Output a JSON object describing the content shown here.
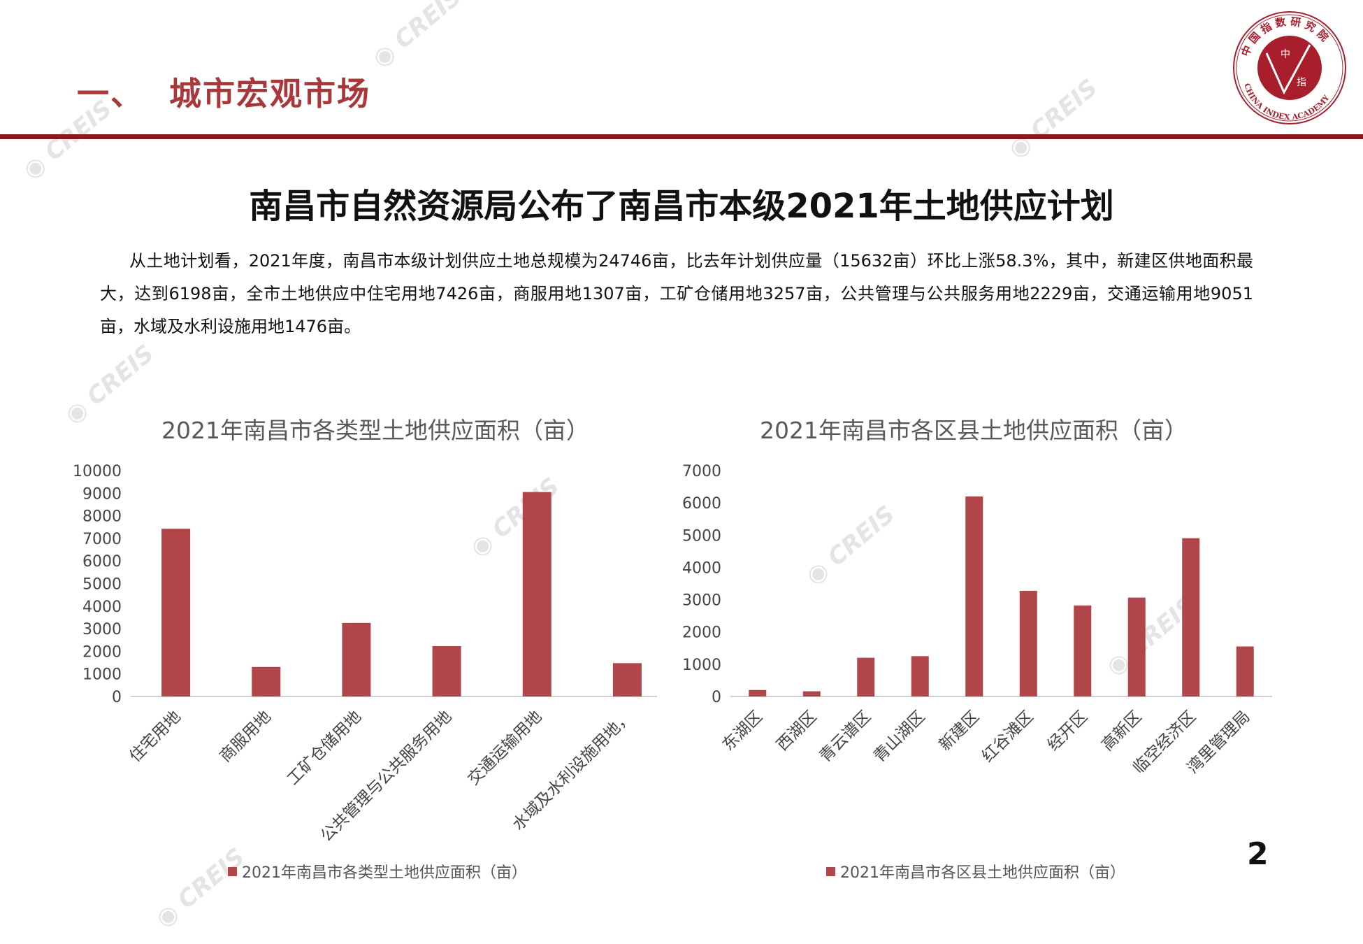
{
  "header": {
    "section_title": "一、  城市宏观市场",
    "logo": {
      "text_cn": "中国指数研究院",
      "text_en": "CHINA INDEX ACADEMY",
      "center": "中 指",
      "color": "#a81e2d"
    },
    "watermark": "CREIS"
  },
  "heading": "南昌市自然资源局公布了南昌市本级2021年土地供应计划",
  "paragraph": "从土地计划看，2021年度，南昌市本级计划供应土地总规模为24746亩，比去年计划供应量（15632亩）环比上涨58.3%，其中，新建区供地面积最大，达到6198亩，全市土地供应中住宅用地7426亩，商服用地1307亩，工矿仓储用地3257亩，公共管理与公共服务用地2229亩，交通运输用地9051亩，水域及水利设施用地1476亩。",
  "page_number": "2",
  "chart_data": [
    {
      "type": "bar",
      "title": "2021年南昌市各类型土地供应面积（亩）",
      "categories": [
        "住宅用地",
        "商服用地",
        "工矿仓储用地",
        "公共管理与公共服务用地",
        "交通运输用地",
        "水域及水利设施用地，"
      ],
      "series": [
        {
          "name": "2021年南昌市各类型土地供应面积（亩）",
          "values": [
            7426,
            1307,
            3257,
            2229,
            9051,
            1476
          ],
          "color": "#b0464a"
        }
      ],
      "ylim": [
        0,
        10000
      ],
      "yticks": [
        0,
        1000,
        2000,
        3000,
        4000,
        5000,
        6000,
        7000,
        8000,
        9000,
        10000
      ],
      "grid": false,
      "legend": "bottom"
    },
    {
      "type": "bar",
      "title": "2021年南昌市各区县土地供应面积（亩）",
      "categories": [
        "东湖区",
        "西湖区",
        "青云谱区",
        "青山湖区",
        "新建区",
        "红谷滩区",
        "经开区",
        "高新区",
        "临空经济区",
        "湾里管理局"
      ],
      "series": [
        {
          "name": "2021年南昌市各区县土地供应面积（亩）",
          "values": [
            200,
            160,
            1200,
            1250,
            6198,
            3275,
            2820,
            3065,
            4905,
            1550
          ],
          "color": "#b0464a"
        }
      ],
      "ylim": [
        0,
        7000
      ],
      "yticks": [
        0,
        1000,
        2000,
        3000,
        4000,
        5000,
        6000,
        7000
      ],
      "grid": false,
      "legend": "bottom"
    }
  ]
}
